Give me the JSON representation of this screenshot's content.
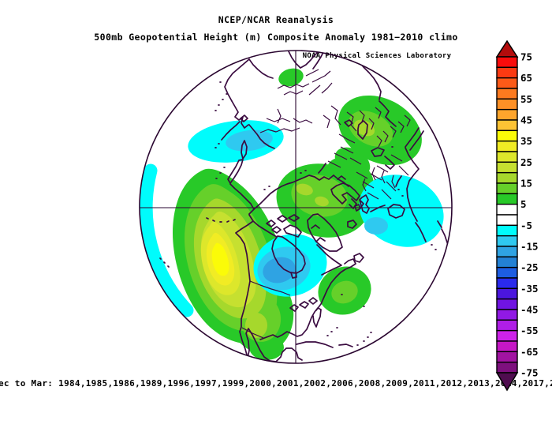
{
  "header": {
    "line1": "NCEP/NCAR Reanalysis",
    "line2": "500mb Geopotential Height (m) Composite Anomaly 1981−2010 climo",
    "credit": "NOAA Physical Sciences Laboratory"
  },
  "caption": "ec to Mar: 1984,1985,1986,1989,1996,1997,1999,2000,2001,2002,2006,2008,2009,2011,2012,2013,2014,2017,2",
  "colorbar": {
    "tick_labels": [
      "75",
      "65",
      "55",
      "45",
      "35",
      "25",
      "15",
      "5",
      "-5",
      "-15",
      "-25",
      "-35",
      "-45",
      "-55",
      "-65",
      "-75"
    ],
    "box_colors_top_to_bottom": [
      "#F90C0C",
      "#FB3A12",
      "#FC5A18",
      "#FD7A1F",
      "#FD9026",
      "#FEA52C",
      "#FDC334",
      "#FBFB08",
      "#F1EC24",
      "#DDE72B",
      "#C6E030",
      "#A6D82C",
      "#66D02A",
      "#28C928",
      "#FFFFFF",
      "#FFFFFF",
      "#00FCFC",
      "#2FC9F0",
      "#2FA3E3",
      "#2381D5",
      "#1D5DE2",
      "#2A2AEC",
      "#4B16DE",
      "#7014E2",
      "#9119E5",
      "#B01EE7",
      "#CD22E9",
      "#C617C6",
      "#A213A2",
      "#7E107E"
    ],
    "top_arrow_color": "#B30C0C",
    "bottom_arrow_color": "#4F0D4F",
    "outline_color": "#000000",
    "label_color": "#000000"
  },
  "map": {
    "background": "#FFFFFF",
    "coastline_color": "#3A0B40",
    "grid_color": "#2A0630",
    "palette": {
      "p5": "#28C928",
      "p10": "#66D02A",
      "p15": "#A6D82C",
      "p20": "#C6E030",
      "p25": "#DDE72B",
      "p30": "#F1EC24",
      "p35": "#FBFB08",
      "n5": "#00FCFC",
      "n10": "#2FC9F0",
      "n15": "#2FA3E3",
      "n20": "#2381D5"
    }
  },
  "chart_data": {
    "type": "heatmap",
    "title": "NCEP/NCAR Reanalysis",
    "subtitle": "500mb Geopotential Height (m) Composite Anomaly 1981-2010 climo",
    "source": "NOAA Physical Sciences Laboratory",
    "variable": "500mb geopotential height composite anomaly",
    "units": "m",
    "climatology": "1981-2010",
    "season": "Dec to Mar",
    "composite_years": [
      1984,
      1985,
      1986,
      1989,
      1996,
      1997,
      1999,
      2000,
      2001,
      2002,
      2006,
      2008,
      2009,
      2011,
      2012,
      2013,
      2014,
      2017
    ],
    "composite_years_note": "caption clipped at both edges; leading 'D' of 'Dec' and final year truncated",
    "projection": "Northern Hemisphere polar stereographic, pole centered, ~20N rim, 90W at bottom, 0E at right, 180 at left, 90E at top",
    "colorbar": {
      "min": -75,
      "max": 75,
      "box_step": 5,
      "label_step": 10,
      "legend_position": "right"
    },
    "anomaly_centers": [
      {
        "region": "North Pacific (~40N 165W)",
        "sign": "positive",
        "peak_m": 38
      },
      {
        "region": "Northeast Asia / Sea of Okhotsk",
        "sign": "negative",
        "peak_m": -13
      },
      {
        "region": "Central Pacific near date line rim",
        "sign": "negative",
        "peak_m": -8
      },
      {
        "region": "Arctic / Greenland / northern Canada",
        "sign": "positive",
        "peak_m": 17
      },
      {
        "region": "Eastern Europe / western Asia",
        "sign": "positive",
        "peak_m": 17
      },
      {
        "region": "Europe / Mediterranean",
        "sign": "negative",
        "peak_m": -12
      },
      {
        "region": "Eastern North America / Hudson Bay",
        "sign": "negative",
        "peak_m": -18
      },
      {
        "region": "Southern North America into Atlantic",
        "sign": "positive",
        "peak_m": 16
      },
      {
        "region": "Tibet / Himalaya (small spot)",
        "sign": "positive",
        "peak_m": 8
      }
    ]
  }
}
